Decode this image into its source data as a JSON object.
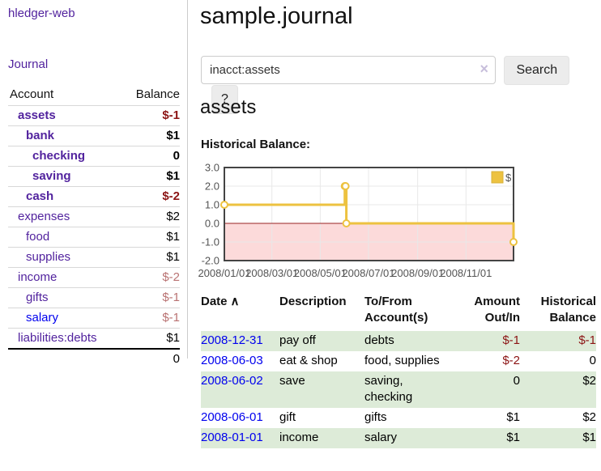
{
  "sidebar": {
    "brand": "hledger-web",
    "journal_label": "Journal",
    "accounts_table": {
      "headers": [
        "Account",
        "Balance"
      ],
      "rows": [
        {
          "account": "assets",
          "balance": "$-1",
          "indent": 1,
          "bold": true,
          "tone": "neg-strong",
          "visited": true
        },
        {
          "account": "bank",
          "balance": "$1",
          "indent": 2,
          "bold": true,
          "tone": "normal",
          "visited": true
        },
        {
          "account": "checking",
          "balance": "0",
          "indent": 3,
          "bold": true,
          "tone": "normal",
          "visited": true
        },
        {
          "account": "saving",
          "balance": "$1",
          "indent": 3,
          "bold": true,
          "tone": "normal",
          "visited": true
        },
        {
          "account": "cash",
          "balance": "$-2",
          "indent": 2,
          "bold": true,
          "tone": "neg-strong",
          "visited": true
        },
        {
          "account": "expenses",
          "balance": "$2",
          "indent": 1,
          "bold": false,
          "tone": "normal",
          "visited": true
        },
        {
          "account": "food",
          "balance": "$1",
          "indent": 2,
          "bold": false,
          "tone": "normal",
          "visited": true
        },
        {
          "account": "supplies",
          "balance": "$1",
          "indent": 2,
          "bold": false,
          "tone": "normal",
          "visited": true
        },
        {
          "account": "income",
          "balance": "$-2",
          "indent": 1,
          "bold": false,
          "tone": "neg-soft",
          "visited": true
        },
        {
          "account": "gifts",
          "balance": "$-1",
          "indent": 2,
          "bold": false,
          "tone": "neg-soft",
          "visited": true
        },
        {
          "account": "salary",
          "balance": "$-1",
          "indent": 2,
          "bold": false,
          "tone": "neg-soft",
          "visited": false
        },
        {
          "account": "liabilities:debts",
          "balance": "$1",
          "indent": 1,
          "bold": false,
          "tone": "normal",
          "visited": true
        }
      ],
      "total": "0"
    }
  },
  "header": {
    "title": "sample.journal"
  },
  "search": {
    "value": "inacct:assets",
    "clear_icon": "×",
    "button_label": "Search",
    "help_label": "?"
  },
  "account_page": {
    "title": "assets",
    "chart_label": "Historical Balance:"
  },
  "chart_data": {
    "type": "line",
    "title": "Historical Balance:",
    "step": true,
    "xlim": [
      "2008-01-01",
      "2008-12-31"
    ],
    "ylim": [
      -2,
      3
    ],
    "x_ticks": [
      "2008/01/01",
      "2008/03/01",
      "2008/05/01",
      "2008/07/01",
      "2008/09/01",
      "2008/11/01"
    ],
    "y_ticks": [
      3,
      2,
      1,
      0,
      -1,
      -2
    ],
    "series": [
      {
        "name": "$",
        "color": "#edc240",
        "points": [
          [
            "2008-01-01",
            1
          ],
          [
            "2008-06-01",
            2
          ],
          [
            "2008-06-02",
            2
          ],
          [
            "2008-06-03",
            0
          ],
          [
            "2008-12-31",
            -1
          ]
        ]
      }
    ],
    "legend_position": "top-right",
    "grid": true,
    "negative_region_color": "#fcdada",
    "zero_line_color": "#992222"
  },
  "register_table": {
    "headers": {
      "date": "Date",
      "description": "Description",
      "accounts": "To/From Account(s)",
      "amount": "Amount Out/In",
      "balance": "Historical Balance"
    },
    "sort_icon": "∧",
    "rows": [
      {
        "date": "2008-12-31",
        "description": "pay off",
        "accounts": "debts",
        "amount": "$-1",
        "amount_tone": "neg-strong",
        "balance": "$-1",
        "balance_tone": "neg-strong",
        "shaded": true
      },
      {
        "date": "2008-06-03",
        "description": "eat & shop",
        "accounts": "food, supplies",
        "amount": "$-2",
        "amount_tone": "neg-strong",
        "balance": "0",
        "balance_tone": "normal",
        "shaded": false
      },
      {
        "date": "2008-06-02",
        "description": "save",
        "accounts": "saving, checking",
        "amount": "0",
        "amount_tone": "normal",
        "balance": "$2",
        "balance_tone": "normal",
        "shaded": true
      },
      {
        "date": "2008-06-01",
        "description": "gift",
        "accounts": "gifts",
        "amount": "$1",
        "amount_tone": "normal",
        "balance": "$2",
        "balance_tone": "normal",
        "shaded": false
      },
      {
        "date": "2008-01-01",
        "description": "income",
        "accounts": "salary",
        "amount": "$1",
        "amount_tone": "normal",
        "balance": "$1",
        "balance_tone": "normal",
        "shaded": true
      }
    ]
  }
}
